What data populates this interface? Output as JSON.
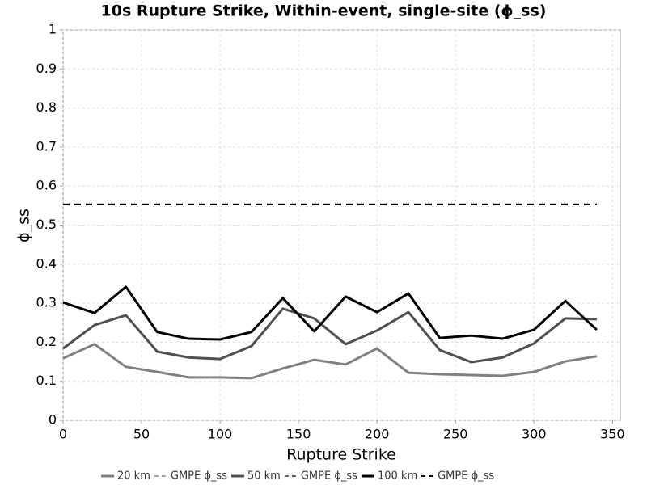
{
  "chart_data": {
    "type": "line",
    "title": "10s Rupture Strike, Within-event, single-site (ϕ_ss)",
    "xlabel": "Rupture Strike",
    "ylabel": "ϕ_ss",
    "x": [
      0,
      20,
      40,
      60,
      80,
      100,
      120,
      140,
      160,
      180,
      200,
      220,
      240,
      260,
      280,
      300,
      320,
      340
    ],
    "series": [
      {
        "name": "20 km",
        "color": "#808080",
        "dashed": false,
        "values": [
          0.159,
          0.195,
          0.137,
          0.124,
          0.11,
          0.11,
          0.108,
          0.133,
          0.155,
          0.143,
          0.184,
          0.122,
          0.118,
          0.116,
          0.114,
          0.124,
          0.151,
          0.164
        ]
      },
      {
        "name": "GMPE ϕ_ss",
        "color": "#a0a0a0",
        "dashed": true,
        "values": [
          0.553,
          0.553,
          0.553,
          0.553,
          0.553,
          0.553,
          0.553,
          0.553,
          0.553,
          0.553,
          0.553,
          0.553,
          0.553,
          0.553,
          0.553,
          0.553,
          0.553,
          0.553
        ]
      },
      {
        "name": "50 km",
        "color": "#505050",
        "dashed": false,
        "values": [
          0.184,
          0.244,
          0.269,
          0.176,
          0.161,
          0.157,
          0.19,
          0.286,
          0.261,
          0.195,
          0.23,
          0.277,
          0.18,
          0.149,
          0.161,
          0.197,
          0.261,
          0.259
        ]
      },
      {
        "name": "GMPE ϕ_ss",
        "color": "#606060",
        "dashed": true,
        "values": [
          0.553,
          0.553,
          0.553,
          0.553,
          0.553,
          0.553,
          0.553,
          0.553,
          0.553,
          0.553,
          0.553,
          0.553,
          0.553,
          0.553,
          0.553,
          0.553,
          0.553,
          0.553
        ]
      },
      {
        "name": "100 km",
        "color": "#000000",
        "dashed": false,
        "values": [
          0.302,
          0.275,
          0.342,
          0.226,
          0.209,
          0.207,
          0.226,
          0.313,
          0.228,
          0.317,
          0.277,
          0.325,
          0.211,
          0.217,
          0.209,
          0.232,
          0.306,
          0.232
        ]
      },
      {
        "name": "GMPE ϕ_ss",
        "color": "#000000",
        "dashed": true,
        "values": [
          0.553,
          0.553,
          0.553,
          0.553,
          0.553,
          0.553,
          0.553,
          0.553,
          0.553,
          0.553,
          0.553,
          0.553,
          0.553,
          0.553,
          0.553,
          0.553,
          0.553,
          0.553
        ]
      }
    ],
    "xlim": [
      0,
      355
    ],
    "xticks": [
      0,
      50,
      100,
      150,
      200,
      250,
      300,
      350
    ],
    "ylim": [
      0,
      1
    ],
    "yticks": [
      0,
      0.1,
      0.2,
      0.3,
      0.4,
      0.5,
      0.6,
      0.7,
      0.8,
      0.9,
      1
    ],
    "grid": true,
    "legend": "bottom"
  }
}
